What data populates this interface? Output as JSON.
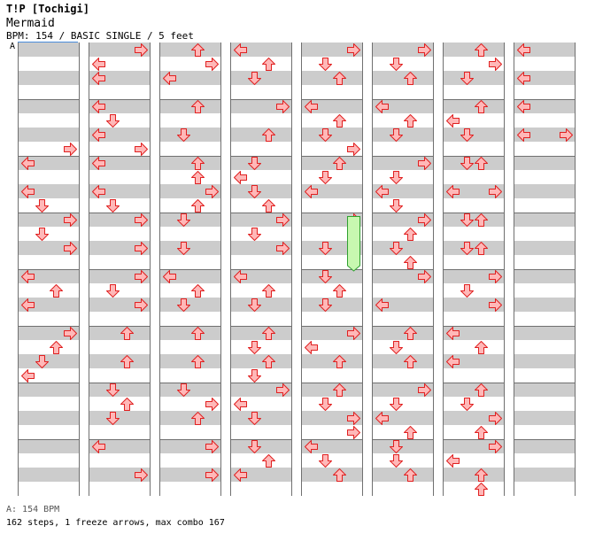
{
  "header": {
    "title": "T!P [Tochigi]",
    "song": "Mermaid",
    "info": "BPM: 154 / BASIC SINGLE / 5 feet",
    "bpm_marker": "A"
  },
  "footer": {
    "bpm_legend": "A: 154 BPM",
    "stats": "162 steps, 1 freeze arrows, max combo 167"
  },
  "colors": {
    "arrow_fill": "#ffb8b8",
    "arrow_stroke": "#e02020",
    "freeze_fill": "#c8f8b0",
    "freeze_stroke": "#30a030"
  },
  "chart": {
    "rows_per_column": 32,
    "rows_per_measure": 4,
    "lane_directions": [
      "left",
      "down",
      "up",
      "right"
    ],
    "columns": [
      [
        [
          7,
          3
        ],
        [
          8,
          0
        ],
        [
          10,
          0
        ],
        [
          11,
          1
        ]
      ],
      [
        [
          0,
          3
        ],
        [
          1,
          0
        ],
        [
          2,
          0
        ],
        [
          4,
          0
        ],
        [
          5,
          1
        ],
        [
          6,
          0
        ],
        [
          7,
          3
        ],
        [
          8,
          0
        ],
        [
          10,
          0
        ],
        [
          11,
          1
        ]
      ],
      [
        [
          0,
          2
        ],
        [
          1,
          3
        ],
        [
          2,
          0
        ],
        [
          4,
          2
        ],
        [
          6,
          1
        ],
        [
          8,
          2
        ],
        [
          9,
          2
        ],
        [
          10,
          3
        ],
        [
          11,
          2
        ]
      ],
      [
        [
          0,
          0
        ],
        [
          1,
          2
        ],
        [
          2,
          1
        ],
        [
          4,
          3
        ],
        [
          6,
          2
        ],
        [
          8,
          1
        ],
        [
          9,
          0
        ],
        [
          10,
          1
        ],
        [
          11,
          2
        ]
      ],
      [
        [
          0,
          3
        ],
        [
          1,
          1
        ],
        [
          2,
          2
        ],
        [
          4,
          0
        ],
        [
          5,
          2
        ],
        [
          6,
          1
        ],
        [
          7,
          3
        ],
        [
          8,
          2
        ],
        [
          9,
          1
        ],
        [
          10,
          0
        ]
      ],
      [
        [
          0,
          3
        ],
        [
          1,
          1
        ],
        [
          2,
          2
        ],
        [
          4,
          0
        ],
        [
          5,
          2
        ],
        [
          6,
          1
        ],
        [
          8,
          3
        ],
        [
          9,
          1
        ],
        [
          10,
          0
        ],
        [
          11,
          1
        ]
      ],
      [
        [
          0,
          2
        ],
        [
          1,
          3
        ],
        [
          2,
          1
        ],
        [
          4,
          2
        ],
        [
          5,
          0
        ],
        [
          6,
          1
        ],
        [
          8,
          1
        ],
        [
          8,
          2
        ],
        [
          10,
          0
        ],
        [
          10,
          3
        ]
      ],
      [
        [
          0,
          0
        ],
        [
          2,
          0
        ],
        [
          4,
          0
        ],
        [
          6,
          0
        ],
        [
          6,
          3
        ]
      ],
      [
        [
          12,
          3
        ],
        [
          13,
          1
        ],
        [
          14,
          3
        ],
        [
          16,
          0
        ],
        [
          17,
          2
        ],
        [
          18,
          0
        ],
        [
          20,
          3
        ],
        [
          21,
          2
        ],
        [
          22,
          1
        ],
        [
          23,
          0
        ]
      ],
      [
        [
          12,
          3
        ],
        [
          14,
          3
        ],
        [
          16,
          3
        ],
        [
          17,
          1
        ],
        [
          18,
          3
        ],
        [
          20,
          2
        ],
        [
          22,
          2
        ],
        [
          24,
          1
        ],
        [
          25,
          2
        ],
        [
          26,
          1
        ],
        [
          28,
          0
        ],
        [
          30,
          3
        ]
      ],
      [
        [
          12,
          1
        ],
        [
          14,
          1
        ],
        [
          16,
          0
        ],
        [
          17,
          2
        ],
        [
          18,
          1
        ],
        [
          20,
          2
        ],
        [
          22,
          2
        ],
        [
          24,
          1
        ],
        [
          25,
          3
        ],
        [
          26,
          2
        ],
        [
          28,
          3
        ],
        [
          30,
          3
        ]
      ],
      [
        [
          12,
          3
        ],
        [
          13,
          1
        ],
        [
          14,
          3
        ],
        [
          16,
          0
        ],
        [
          17,
          2
        ],
        [
          18,
          1
        ],
        [
          20,
          2
        ],
        [
          21,
          1
        ],
        [
          22,
          2
        ],
        [
          23,
          1
        ],
        [
          24,
          3
        ],
        [
          25,
          0
        ],
        [
          26,
          1
        ],
        [
          28,
          1
        ],
        [
          29,
          2
        ],
        [
          30,
          0
        ]
      ],
      [
        [
          12,
          3
        ],
        [
          14,
          1
        ],
        [
          16,
          1
        ],
        [
          17,
          2
        ],
        [
          18,
          1
        ],
        [
          20,
          3
        ],
        [
          21,
          0
        ],
        [
          22,
          2
        ],
        [
          24,
          2
        ],
        [
          25,
          1
        ],
        [
          26,
          3
        ],
        [
          27,
          3
        ],
        [
          28,
          0
        ],
        [
          29,
          1
        ],
        [
          30,
          2
        ]
      ],
      [
        [
          12,
          3
        ],
        [
          13,
          2
        ],
        [
          14,
          1
        ],
        [
          15,
          2
        ],
        [
          16,
          3
        ],
        [
          18,
          0
        ],
        [
          20,
          2
        ],
        [
          21,
          1
        ],
        [
          22,
          2
        ],
        [
          24,
          3
        ],
        [
          25,
          1
        ],
        [
          26,
          0
        ],
        [
          27,
          2
        ],
        [
          28,
          1
        ],
        [
          29,
          1
        ],
        [
          30,
          2
        ]
      ],
      [
        [
          12,
          1
        ],
        [
          12,
          2
        ],
        [
          14,
          1
        ],
        [
          14,
          2
        ],
        [
          16,
          3
        ],
        [
          17,
          1
        ],
        [
          18,
          3
        ],
        [
          20,
          0
        ],
        [
          21,
          2
        ],
        [
          22,
          0
        ],
        [
          24,
          2
        ],
        [
          25,
          1
        ],
        [
          26,
          3
        ],
        [
          27,
          2
        ],
        [
          28,
          3
        ],
        [
          29,
          0
        ],
        [
          30,
          2
        ],
        [
          31,
          2
        ]
      ],
      []
    ],
    "freezes": [
      {
        "column": 4,
        "lane": 3,
        "start_row": 12,
        "end_row": 15
      }
    ]
  }
}
